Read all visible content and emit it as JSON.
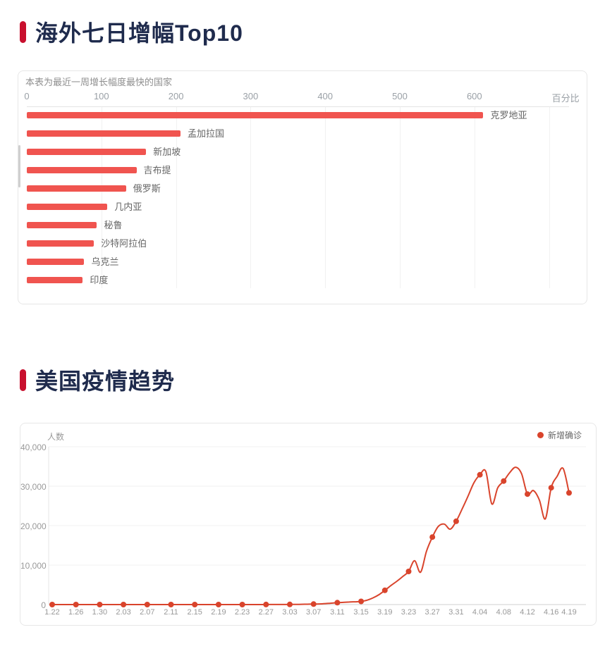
{
  "page": {
    "background": "#ffffff"
  },
  "colors": {
    "accent_red": "#c8102e",
    "title_navy": "#1f2b4d",
    "bar_red": "#f0544f",
    "line_red": "#d9442c",
    "tick_gray": "#9aa0a6",
    "grid_gray": "#f1f1f1"
  },
  "section1": {
    "title": "海外七日增幅Top10"
  },
  "section2": {
    "title": "美国疫情趋势"
  },
  "chart_data": [
    {
      "type": "bar",
      "orientation": "horizontal",
      "title": "海外七日增幅Top10",
      "subtitle": "本表为最近一周增长幅度最快的国家",
      "unit_label": "百分比",
      "categories": [
        "克罗地亚",
        "孟加拉国",
        "新加坡",
        "吉布提",
        "俄罗斯",
        "几内亚",
        "秘鲁",
        "沙特阿拉伯",
        "乌克兰",
        "印度"
      ],
      "values": [
        612,
        206,
        160,
        147,
        133,
        108,
        94,
        90,
        77,
        75
      ],
      "x_ticks": [
        0,
        100,
        200,
        300,
        400,
        500,
        600
      ],
      "xlim": [
        0,
        700
      ],
      "grid": true,
      "bar_color": "#f0544f"
    },
    {
      "type": "line",
      "title": "美国疫情趋势",
      "ylabel": "人数",
      "legend": [
        "新增确诊"
      ],
      "legend_position": "top-right",
      "line_color": "#d9442c",
      "smooth": true,
      "grid": true,
      "ylim": [
        0,
        40000
      ],
      "y_ticks": [
        0,
        10000,
        20000,
        30000,
        40000
      ],
      "x_tick_labels": [
        "1.22",
        "1.26",
        "1.30",
        "2.03",
        "2.07",
        "2.11",
        "2.15",
        "2.19",
        "2.23",
        "2.27",
        "3.03",
        "3.07",
        "3.11",
        "3.15",
        "3.19",
        "3.23",
        "3.27",
        "3.31",
        "4.04",
        "4.08",
        "4.12",
        "4.16",
        "4.19"
      ],
      "x_tick_indices": [
        0,
        4,
        8,
        12,
        16,
        20,
        24,
        28,
        32,
        36,
        40,
        44,
        48,
        52,
        56,
        60,
        64,
        68,
        72,
        76,
        80,
        84,
        87
      ],
      "x": [
        "1.22",
        "1.23",
        "1.24",
        "1.25",
        "1.26",
        "1.27",
        "1.28",
        "1.29",
        "1.30",
        "1.31",
        "2.01",
        "2.02",
        "2.03",
        "2.04",
        "2.05",
        "2.06",
        "2.07",
        "2.08",
        "2.09",
        "2.10",
        "2.11",
        "2.12",
        "2.13",
        "2.14",
        "2.15",
        "2.16",
        "2.17",
        "2.18",
        "2.19",
        "2.20",
        "2.21",
        "2.22",
        "2.23",
        "2.24",
        "2.25",
        "2.26",
        "2.27",
        "2.28",
        "3.01",
        "3.02",
        "3.03",
        "3.04",
        "3.05",
        "3.06",
        "3.07",
        "3.08",
        "3.09",
        "3.10",
        "3.11",
        "3.12",
        "3.13",
        "3.14",
        "3.15",
        "3.16",
        "3.17",
        "3.18",
        "3.19",
        "3.20",
        "3.21",
        "3.22",
        "3.23",
        "3.24",
        "3.25",
        "3.26",
        "3.27",
        "3.28",
        "3.29",
        "3.30",
        "3.31",
        "4.01",
        "4.02",
        "4.03",
        "4.04",
        "4.05",
        "4.06",
        "4.07",
        "4.08",
        "4.09",
        "4.10",
        "4.11",
        "4.12",
        "4.13",
        "4.14",
        "4.15",
        "4.16",
        "4.17",
        "4.18",
        "4.19"
      ],
      "series": [
        {
          "name": "新增确诊",
          "values": [
            0,
            0,
            0,
            0,
            0,
            0,
            0,
            0,
            0,
            0,
            0,
            0,
            0,
            0,
            0,
            0,
            0,
            0,
            0,
            0,
            0,
            0,
            0,
            0,
            0,
            0,
            0,
            0,
            0,
            0,
            0,
            0,
            0,
            0,
            0,
            5,
            10,
            18,
            22,
            25,
            30,
            45,
            65,
            95,
            130,
            160,
            250,
            350,
            480,
            550,
            650,
            700,
            800,
            1100,
            1700,
            2500,
            3600,
            4800,
            5900,
            7100,
            8400,
            11100,
            8200,
            13500,
            17100,
            19800,
            20400,
            19100,
            21100,
            24200,
            27500,
            30900,
            32900,
            33700,
            25500,
            29600,
            31300,
            33400,
            34800,
            33200,
            28000,
            28900,
            26500,
            21700,
            29600,
            32500,
            34500,
            28300
          ]
        }
      ]
    }
  ]
}
